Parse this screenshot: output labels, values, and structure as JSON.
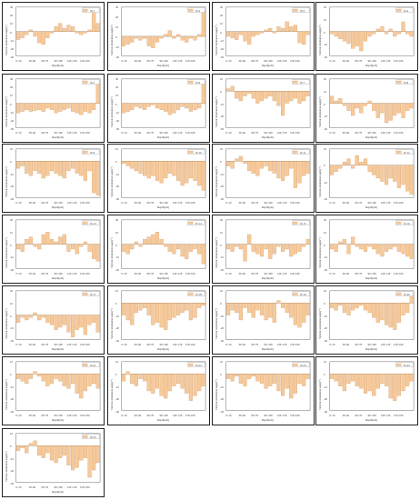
{
  "style": {
    "bar_fill": "#f6c99a",
    "bar_stroke": "#c98d55",
    "axis_color": "#444444"
  },
  "chart_data": [
    {
      "type": "bar",
      "legend": "W-1",
      "xlabel": "Depth(cm)",
      "ylabel": "Vertical orientation angle(°)",
      "ylim": [
        -30,
        30
      ],
      "yticks": [
        "-30",
        "-20",
        "-10",
        "0",
        "10",
        "20",
        "30"
      ],
      "xticks": [
        "0~10",
        "30~40",
        "60~70",
        "90~100",
        "120~130",
        "150~160"
      ],
      "values": [
        -10,
        -8,
        -4,
        2,
        -6,
        -14,
        -16,
        -8,
        -2,
        6,
        10,
        4,
        8,
        6,
        -2,
        -4,
        -2,
        2,
        24,
        10
      ]
    },
    {
      "type": "bar",
      "legend": "W-2",
      "xlabel": "Depth(cm)",
      "ylabel": "Vertical orientation angle(°)",
      "ylim": [
        -20,
        30
      ],
      "yticks": [
        "-20",
        "-10",
        "0",
        "10",
        "20",
        "30"
      ],
      "xticks": [
        "0~10",
        "30~40",
        "60~70",
        "90~100",
        "120~130",
        "150~160"
      ],
      "values": [
        -10,
        -8,
        -6,
        -2,
        -4,
        -2,
        -10,
        -12,
        -6,
        -2,
        2,
        6,
        -2,
        2,
        -4,
        -6,
        -2,
        -4,
        2,
        26
      ]
    },
    {
      "type": "bar",
      "legend": "W-3",
      "xlabel": "Depth(cm)",
      "ylabel": "Vertical orientation angle(°)",
      "ylim": [
        -30,
        30
      ],
      "yticks": [
        "-30",
        "-20",
        "-10",
        "0",
        "10",
        "20",
        "30"
      ],
      "xticks": [
        "0~10",
        "30~40",
        "60~70",
        "90~100",
        "120~130",
        "150~160"
      ],
      "values": [
        -6,
        -8,
        -10,
        -4,
        -12,
        -16,
        -6,
        -4,
        -2,
        2,
        4,
        -2,
        6,
        4,
        12,
        6,
        8,
        -14,
        -16,
        -4
      ]
    },
    {
      "type": "bar",
      "legend": "W-4",
      "xlabel": "Depth(cm)",
      "ylabel": "Vertical orientation angle(°)",
      "ylim": [
        -20,
        20
      ],
      "yticks": [
        "-20",
        "-10",
        "0",
        "10",
        "20"
      ],
      "xticks": [
        "0~10",
        "30~40",
        "60~70",
        "90~100",
        "120~130",
        "150~160"
      ],
      "values": [
        -2,
        -4,
        -6,
        -8,
        -10,
        -14,
        -12,
        -16,
        -8,
        -4,
        -2,
        2,
        4,
        -2,
        2,
        -4,
        -2,
        8,
        -2,
        -4
      ]
    },
    {
      "type": "bar",
      "legend": "W-5",
      "xlabel": "Depth(cm)",
      "ylabel": "Vertical orientation angle(°)",
      "ylim": [
        -30,
        30
      ],
      "yticks": [
        "-30",
        "-20",
        "-10",
        "0",
        "10",
        "20",
        "30"
      ],
      "xticks": [
        "0~10",
        "30~40",
        "60~70",
        "90~100",
        "120~130",
        "150~160"
      ],
      "values": [
        -12,
        -10,
        -8,
        -10,
        -9,
        -8,
        -10,
        -6,
        -8,
        -12,
        -10,
        -8,
        -6,
        -10,
        -12,
        -14,
        -10,
        -12,
        -8,
        24
      ]
    },
    {
      "type": "bar",
      "legend": "W-6",
      "xlabel": "Depth(cm)",
      "ylabel": "Vertical orientation angle(°)",
      "ylim": [
        -30,
        30
      ],
      "yticks": [
        "-30",
        "-20",
        "-10",
        "0",
        "10",
        "20",
        "30"
      ],
      "xticks": [
        "0~10",
        "30~40",
        "60~70",
        "90~100",
        "120~130",
        "150~160"
      ],
      "values": [
        -12,
        -10,
        -8,
        -4,
        -6,
        -8,
        -4,
        -2,
        -6,
        -8,
        -10,
        -14,
        -12,
        -8,
        -4,
        -6,
        -10,
        -8,
        -6,
        24
      ]
    },
    {
      "type": "bar",
      "legend": "W-7",
      "xlabel": "Depth(cm)",
      "ylabel": "Vertical orientation angle(°)",
      "ylim": [
        -30,
        10
      ],
      "yticks": [
        "-30",
        "-20",
        "-10",
        "0",
        "10"
      ],
      "xticks": [
        "0~10",
        "30~40",
        "60~70",
        "90~100",
        "120~130",
        "150~160"
      ],
      "values": [
        2,
        4,
        -6,
        -8,
        -4,
        -2,
        -6,
        -10,
        -8,
        -6,
        -4,
        -8,
        -12,
        -20,
        -10,
        -8,
        -6,
        -10,
        -8,
        -4
      ]
    },
    {
      "type": "bar",
      "legend": "W-8",
      "xlabel": "Depth(cm)",
      "ylabel": "Vertical orientation angle(°)",
      "ylim": [
        -20,
        20
      ],
      "yticks": [
        "-20",
        "-10",
        "0",
        "10",
        "20"
      ],
      "xticks": [
        "0~10",
        "30~40",
        "60~70",
        "90~100",
        "120~130",
        "150~160"
      ],
      "values": [
        6,
        2,
        4,
        -2,
        -6,
        -10,
        -4,
        -8,
        -2,
        2,
        -6,
        -12,
        -8,
        -16,
        -14,
        -10,
        -8,
        -12,
        -6,
        -4
      ]
    },
    {
      "type": "bar",
      "legend": "W-9",
      "xlabel": "Depth(cm)",
      "ylabel": "Vertical orientation angle(°)",
      "ylim": [
        -30,
        10
      ],
      "yticks": [
        "-30",
        "-20",
        "-10",
        "0",
        "10"
      ],
      "xticks": [
        "0~10",
        "30~40",
        "60~70",
        "90~100",
        "120~130",
        "150~160"
      ],
      "values": [
        -6,
        -4,
        -10,
        -12,
        -8,
        -10,
        -14,
        -12,
        -8,
        -10,
        -12,
        -14,
        -8,
        -6,
        -10,
        -12,
        -16,
        -8,
        -26,
        -28
      ]
    },
    {
      "type": "bar",
      "legend": "W-10",
      "xlabel": "Depth(cm)",
      "ylabel": "Vertical orientation angle(°)",
      "ylim": [
        -30,
        10
      ],
      "yticks": [
        "-30",
        "-20",
        "-10",
        "0",
        "10"
      ],
      "xticks": [
        "0~10",
        "30~40",
        "60~70",
        "90~100",
        "120~130",
        "150~160"
      ],
      "values": [
        -2,
        -4,
        -6,
        -8,
        -10,
        -12,
        -14,
        -12,
        -16,
        -18,
        -14,
        -10,
        -12,
        -16,
        -20,
        -18,
        -14,
        -16,
        -20,
        -24
      ]
    },
    {
      "type": "bar",
      "legend": "W-11",
      "xlabel": "Depth(cm)",
      "ylabel": "Vertical orientation angle(°)",
      "ylim": [
        -30,
        10
      ],
      "yticks": [
        "-30",
        "-20",
        "-10",
        "0",
        "10"
      ],
      "xticks": [
        "0~10",
        "30~40",
        "60~70",
        "90~100",
        "120~130",
        "150~160"
      ],
      "values": [
        -4,
        -6,
        2,
        4,
        -2,
        -8,
        -10,
        -12,
        -6,
        -4,
        -8,
        -10,
        -14,
        -16,
        -12,
        -6,
        -22,
        -18,
        -12,
        -10
      ]
    },
    {
      "type": "bar",
      "legend": "W-12",
      "xlabel": "Depth(cm)",
      "ylabel": "Vertical orientation angle(°)",
      "ylim": [
        -20,
        10
      ],
      "yticks": [
        "-20",
        "-10",
        "0",
        "10"
      ],
      "xticks": [
        "0~10",
        "30~40",
        "60~70",
        "90~100",
        "120~130",
        "150~160"
      ],
      "values": [
        -6,
        -4,
        -2,
        2,
        4,
        -2,
        6,
        2,
        4,
        -4,
        -6,
        -8,
        -10,
        -12,
        -8,
        -10,
        -14,
        -12,
        -16,
        -18
      ]
    },
    {
      "type": "bar",
      "legend": "W-13",
      "xlabel": "Depth(cm)",
      "ylabel": "Vertical orientation angle(°)",
      "ylim": [
        -20,
        20
      ],
      "yticks": [
        "-20",
        "-10",
        "0",
        "10",
        "20"
      ],
      "xticks": [
        "0~10",
        "30~40",
        "60~70",
        "90~100",
        "120~130",
        "150~160"
      ],
      "values": [
        -4,
        -6,
        4,
        6,
        -2,
        -4,
        8,
        10,
        4,
        2,
        6,
        8,
        -6,
        -4,
        -8,
        -2,
        2,
        -6,
        -12,
        -14
      ]
    },
    {
      "type": "bar",
      "legend": "W-14",
      "xlabel": "Depth(cm)",
      "ylabel": "Vertical orientation angle(°)",
      "ylim": [
        -20,
        20
      ],
      "yticks": [
        "-20",
        "-10",
        "0",
        "10",
        "20"
      ],
      "xticks": [
        "0~10",
        "30~40",
        "60~70",
        "90~100",
        "120~130",
        "150~160"
      ],
      "values": [
        -6,
        -8,
        -4,
        2,
        -2,
        4,
        6,
        8,
        10,
        4,
        -2,
        -6,
        -8,
        -4,
        -10,
        -12,
        -6,
        -4,
        -8,
        -16
      ]
    },
    {
      "type": "bar",
      "legend": "W-15",
      "xlabel": "Depth(cm)",
      "ylabel": "Vertical orientation angle(°)",
      "ylim": [
        -20,
        20
      ],
      "yticks": [
        "-20",
        "-10",
        "0",
        "10",
        "20"
      ],
      "xticks": [
        "0~10",
        "30~40",
        "60~70",
        "90~100",
        "120~130",
        "150~160"
      ],
      "values": [
        -4,
        -6,
        -2,
        -4,
        -14,
        8,
        -6,
        -8,
        -10,
        -4,
        -12,
        -8,
        -2,
        -6,
        -4,
        -10,
        -8,
        -6,
        -2,
        4
      ]
    },
    {
      "type": "bar",
      "legend": "W-16",
      "xlabel": "Depth(cm)",
      "ylabel": "Vertical orientation angle(°)",
      "ylim": [
        -20,
        20
      ],
      "yticks": [
        "-20",
        "-10",
        "0",
        "10",
        "20"
      ],
      "xticks": [
        "0~10",
        "30~40",
        "60~70",
        "90~100",
        "120~130",
        "150~160"
      ],
      "values": [
        -4,
        -6,
        2,
        4,
        -8,
        6,
        -2,
        -4,
        -6,
        -2,
        -4,
        -8,
        -10,
        -6,
        -4,
        -2,
        -6,
        -8,
        -10,
        -12
      ]
    },
    {
      "type": "bar",
      "legend": "W-17",
      "xlabel": "Depth(cm)",
      "ylabel": "Vertical orientation angle(°)",
      "ylim": [
        -20,
        20
      ],
      "yticks": [
        "-20",
        "-10",
        "0",
        "10",
        "20"
      ],
      "xticks": [
        "0~10",
        "30~40",
        "60~70",
        "90~100",
        "120~130",
        "150~160"
      ],
      "values": [
        -6,
        -2,
        -4,
        -2,
        2,
        -4,
        -2,
        -6,
        -8,
        -12,
        -10,
        -8,
        -14,
        -18,
        -12,
        -10,
        -16,
        -8,
        -6,
        -14
      ]
    },
    {
      "type": "bar",
      "legend": "W-18",
      "xlabel": "Depth(cm)",
      "ylabel": "Vertical orientation angle(°)",
      "ylim": [
        -30,
        10
      ],
      "yticks": [
        "-30",
        "-20",
        "-10",
        "0",
        "10"
      ],
      "xticks": [
        "0~10",
        "30~40",
        "60~70",
        "90~100",
        "120~130",
        "150~160"
      ],
      "values": [
        -10,
        -14,
        -18,
        -8,
        -6,
        -4,
        -10,
        -18,
        -16,
        -20,
        -22,
        -14,
        -12,
        -10,
        -8,
        -6,
        -14,
        -12,
        -4,
        -2
      ]
    },
    {
      "type": "bar",
      "legend": "W-19",
      "xlabel": "Depth(cm)",
      "ylabel": "Vertical orientation angle(°)",
      "ylim": [
        -30,
        10
      ],
      "yticks": [
        "-30",
        "-20",
        "-10",
        "0",
        "10"
      ],
      "xticks": [
        "0~10",
        "30~40",
        "60~70",
        "90~100",
        "120~130",
        "150~160"
      ],
      "values": [
        -10,
        -6,
        -8,
        -14,
        -4,
        -8,
        -12,
        -6,
        -10,
        -14,
        -12,
        -16,
        2,
        -4,
        -8,
        -12,
        -18,
        -20,
        -16,
        -10
      ]
    },
    {
      "type": "bar",
      "legend": "W-20",
      "xlabel": "Depth(cm)",
      "ylabel": "Vertical orientation angle(°)",
      "ylim": [
        -30,
        10
      ],
      "yticks": [
        "-30",
        "-20",
        "-10",
        "0",
        "10"
      ],
      "xticks": [
        "0~10",
        "30~40",
        "60~70",
        "90~100",
        "120~130",
        "150~160"
      ],
      "values": [
        -4,
        -6,
        -2,
        -8,
        -10,
        -6,
        -4,
        -2,
        -6,
        -8,
        -12,
        -16,
        -14,
        -18,
        -20,
        -22,
        -16,
        -10,
        -8,
        6
      ]
    },
    {
      "type": "bar",
      "legend": "W-21",
      "xlabel": "Depth(cm)",
      "ylabel": "Vertical orientation angle(°)",
      "ylim": [
        -30,
        10
      ],
      "yticks": [
        "-30",
        "-20",
        "-10",
        "0",
        "10"
      ],
      "xticks": [
        "0~10",
        "30~40",
        "60~70",
        "90~100",
        "120~130",
        "150~160"
      ],
      "values": [
        -4,
        -6,
        -8,
        -4,
        2,
        -2,
        -6,
        -10,
        -8,
        -4,
        -6,
        -10,
        -12,
        -8,
        -16,
        -20,
        -14,
        -10,
        -8,
        -12
      ]
    },
    {
      "type": "bar",
      "legend": "W-22",
      "xlabel": "Depth(cm)",
      "ylabel": "Vertical orientation angle(°)",
      "ylim": [
        -30,
        10
      ],
      "yticks": [
        "-30",
        "-20",
        "-10",
        "0",
        "10"
      ],
      "xticks": [
        "0~10",
        "30~40",
        "60~70",
        "90~100",
        "120~130",
        "150~160"
      ],
      "values": [
        -6,
        2,
        -8,
        -10,
        -4,
        -6,
        -14,
        -16,
        -12,
        -18,
        -20,
        -14,
        -10,
        -8,
        -12,
        -16,
        -22,
        -18,
        -14,
        -10
      ]
    },
    {
      "type": "bar",
      "legend": "W-23",
      "xlabel": "Depth(cm)",
      "ylabel": "Vertical orientation angle(°)",
      "ylim": [
        -30,
        10
      ],
      "yticks": [
        "-30",
        "-20",
        "-10",
        "0",
        "10"
      ],
      "xticks": [
        "0~10",
        "30~40",
        "60~70",
        "90~100",
        "120~130",
        "150~160"
      ],
      "values": [
        -4,
        -6,
        -2,
        -8,
        -10,
        -4,
        -2,
        -6,
        -8,
        -12,
        -10,
        -8,
        -14,
        -18,
        -12,
        -20,
        -16,
        -8,
        -10,
        -4
      ]
    },
    {
      "type": "bar",
      "legend": "W-24",
      "xlabel": "Depth(cm)",
      "ylabel": "Vertical orientation angle(°)",
      "ylim": [
        -30,
        10
      ],
      "yticks": [
        "-30",
        "-20",
        "-10",
        "0",
        "10"
      ],
      "xticks": [
        "0~10",
        "30~40",
        "60~70",
        "90~100",
        "120~130",
        "150~160"
      ],
      "values": [
        -4,
        -6,
        -10,
        -14,
        -8,
        -6,
        -10,
        -12,
        -16,
        -14,
        -18,
        -12,
        -8,
        -10,
        -20,
        -22,
        -18,
        -14,
        -10,
        -6
      ]
    },
    {
      "type": "bar",
      "legend": "W-25",
      "xlabel": "Depth(cm)",
      "ylabel": "Vertical orientation angle(°)",
      "ylim": [
        -30,
        10
      ],
      "yticks": [
        "-30",
        "-20",
        "-10",
        "0",
        "10"
      ],
      "xticks": [
        "0~10",
        "30~40",
        "60~70",
        "90~100",
        "120~130",
        "150~160"
      ],
      "values": [
        -4,
        -2,
        -6,
        2,
        4,
        -8,
        -10,
        -6,
        -12,
        -14,
        -10,
        -8,
        -16,
        -20,
        -18,
        -12,
        -10,
        -26,
        -20,
        -14
      ]
    }
  ]
}
